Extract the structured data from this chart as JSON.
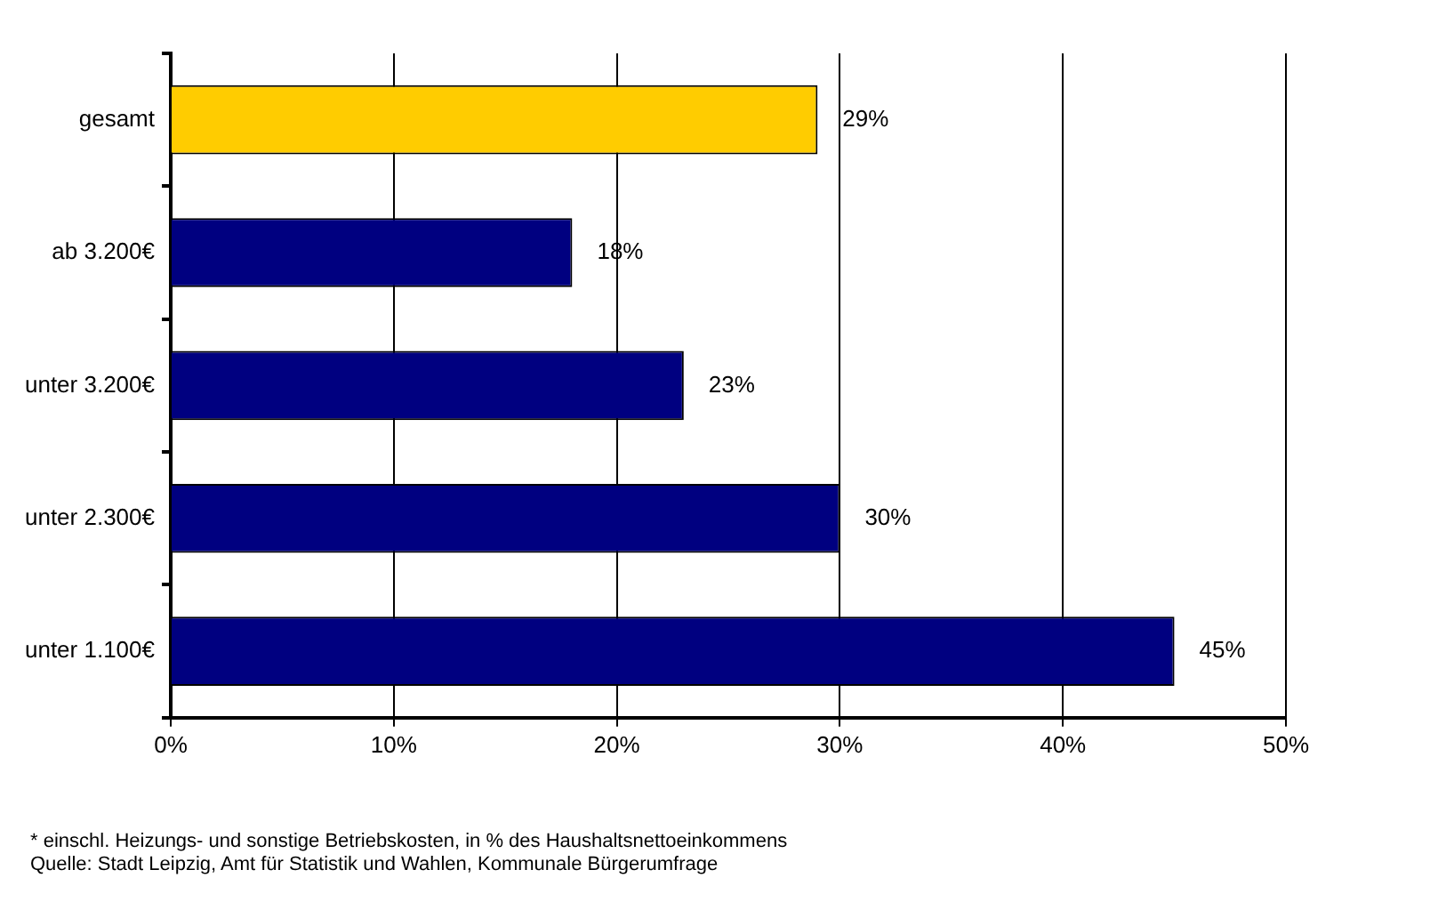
{
  "chart_data": {
    "type": "bar",
    "orientation": "horizontal",
    "categories": [
      "gesamt",
      "ab 3.200€",
      "unter 3.200€",
      "unter 2.300€",
      "unter 1.100€"
    ],
    "values": [
      29,
      18,
      23,
      30,
      45
    ],
    "colors": [
      "#ffcc00",
      "#000080",
      "#000080",
      "#000080",
      "#000080"
    ],
    "value_labels": [
      "29%",
      "18%",
      "23%",
      "30%",
      "45%"
    ],
    "xlim": [
      0,
      50
    ],
    "xticks": [
      {
        "value": 0,
        "label": "0%"
      },
      {
        "value": 10,
        "label": "10%"
      },
      {
        "value": 20,
        "label": "20%"
      },
      {
        "value": 30,
        "label": "30%"
      },
      {
        "value": 40,
        "label": "40%"
      },
      {
        "value": 50,
        "label": "50%"
      }
    ],
    "grid": "x",
    "legend": false,
    "annotations": [
      "* einschl. Heizungs- und sonstige Betriebskosten, in % des Haushaltsnettoeinkommens",
      "Quelle: Stadt Leipzig, Amt für Statistik und Wahlen, Kommunale Bürgerumfrage"
    ]
  }
}
